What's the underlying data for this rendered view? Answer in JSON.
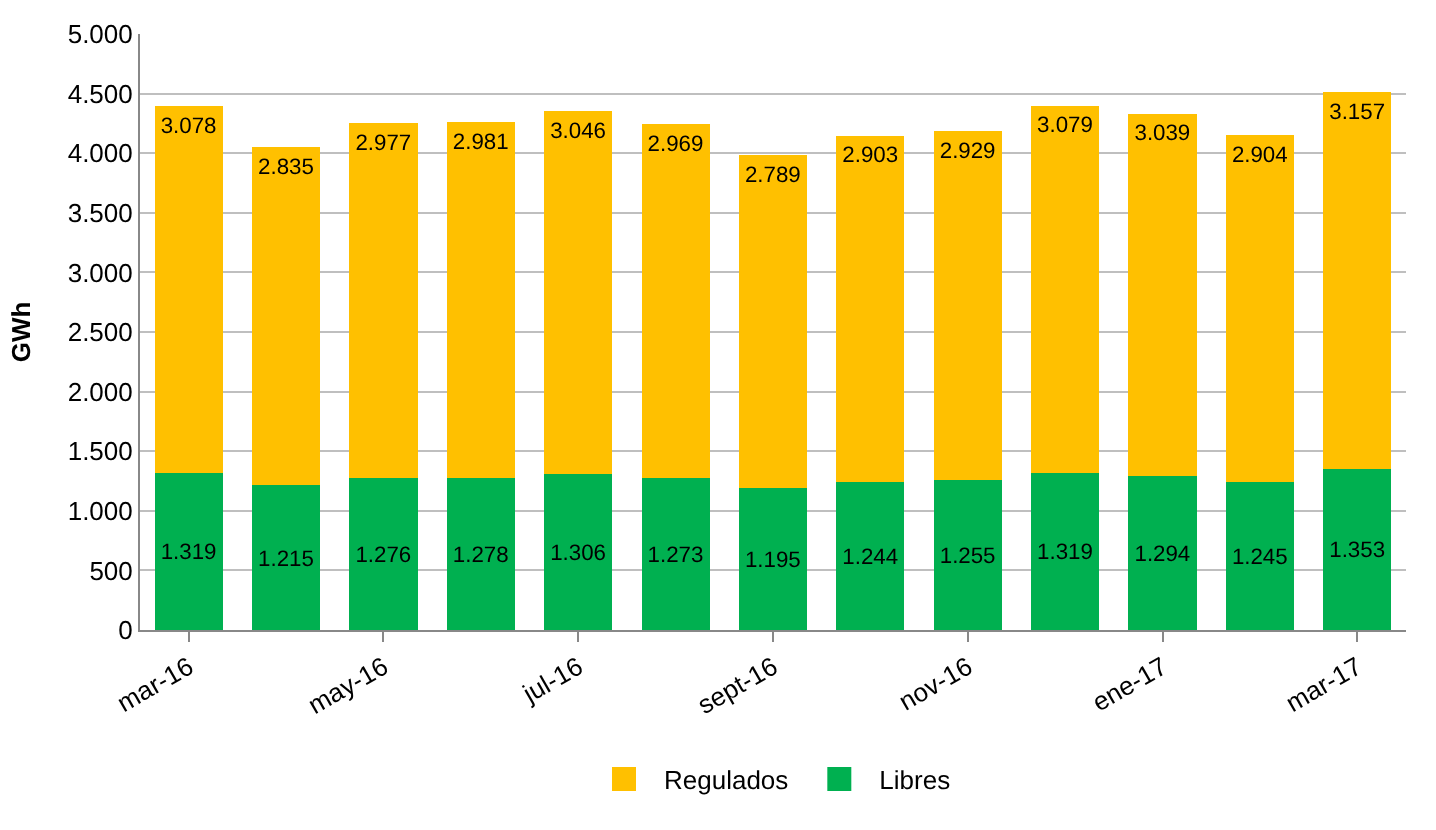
{
  "chart_data": {
    "type": "bar",
    "stacked": true,
    "ylabel": "GWh",
    "categories": [
      "mar-16",
      null,
      "may-16",
      null,
      "jul-16",
      null,
      "sept-16",
      null,
      "nov-16",
      null,
      "ene-17",
      null,
      "mar-17"
    ],
    "series": [
      {
        "name": "Libres",
        "color": "#00b050",
        "values": [
          1319,
          1215,
          1276,
          1278,
          1306,
          1273,
          1195,
          1244,
          1255,
          1319,
          1294,
          1245,
          1353
        ],
        "value_labels": [
          "1.319",
          "1.215",
          "1.276",
          "1.278",
          "1.306",
          "1.273",
          "1.195",
          "1.244",
          "1.255",
          "1.319",
          "1.294",
          "1.245",
          "1.353"
        ]
      },
      {
        "name": "Regulados",
        "color": "#ffc000",
        "values": [
          3078,
          2835,
          2977,
          2981,
          3046,
          2969,
          2789,
          2903,
          2929,
          3079,
          3039,
          2904,
          3157
        ],
        "value_labels": [
          "3.078",
          "2.835",
          "2.977",
          "2.981",
          "3.046",
          "2.969",
          "2.789",
          "2.903",
          "2.929",
          "3.079",
          "3.039",
          "2.904",
          "3.157"
        ]
      }
    ],
    "ylim": [
      0,
      5000
    ],
    "yticks": [
      {
        "value": 0,
        "label": "0"
      },
      {
        "value": 500,
        "label": "500"
      },
      {
        "value": 1000,
        "label": "1.000"
      },
      {
        "value": 1500,
        "label": "1.500"
      },
      {
        "value": 2000,
        "label": "2.000"
      },
      {
        "value": 2500,
        "label": "2.500"
      },
      {
        "value": 3000,
        "label": "3.000"
      },
      {
        "value": 3500,
        "label": "3.500"
      },
      {
        "value": 4000,
        "label": "4.000"
      },
      {
        "value": 4500,
        "label": "4.500"
      },
      {
        "value": 5000,
        "label": "5.000"
      }
    ],
    "grid": "y",
    "legend": "bottom"
  }
}
